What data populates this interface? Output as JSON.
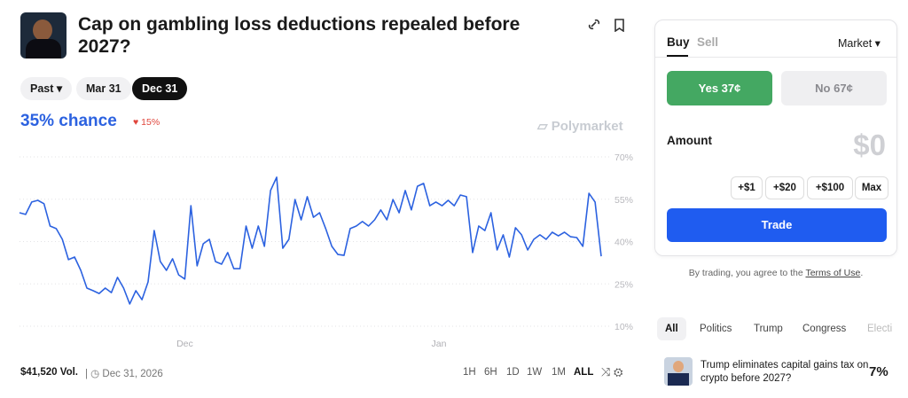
{
  "header": {
    "title": "Cap on gambling loss deductions repealed before 2027?"
  },
  "date_tabs": [
    "Past",
    "Mar 31",
    "Dec 31"
  ],
  "chance": "35% chance",
  "change": "15%",
  "brand": "Polymarket",
  "chart_data": {
    "type": "line",
    "color": "#2c62e0",
    "grid": true,
    "values": [
      50.2,
      49.6,
      54.0,
      54.6,
      53.4,
      45.5,
      44.6,
      40.8,
      33.6,
      34.5,
      29.8,
      23.5,
      22.6,
      21.6,
      23.5,
      21.9,
      27.3,
      23.5,
      17.9,
      22.6,
      19.4,
      25.7,
      43.9,
      32.9,
      29.8,
      33.9,
      28.2,
      26.7,
      52.7,
      31.4,
      39.2,
      40.8,
      32.9,
      32.0,
      36.1,
      30.4,
      30.4,
      45.5,
      37.6,
      45.5,
      38.3,
      58.1,
      62.8,
      37.6,
      40.8,
      54.9,
      47.7,
      55.9,
      48.6,
      50.2,
      44.6,
      38.3,
      35.4,
      35.1,
      44.6,
      45.5,
      47.1,
      45.5,
      47.7,
      51.2,
      47.7,
      54.9,
      50.2,
      58.1,
      51.2,
      59.6,
      60.6,
      52.7,
      54.0,
      52.7,
      54.6,
      52.7,
      56.5,
      55.9,
      36.1,
      45.5,
      43.9,
      50.2,
      37.0,
      42.4,
      34.5,
      44.9,
      42.4,
      37.0,
      40.8,
      42.4,
      40.8,
      43.3,
      42.0,
      43.3,
      41.7,
      41.4,
      38.3,
      57.1,
      54.0,
      34.8
    ],
    "xlim": [
      0,
      95
    ],
    "xticks": [
      {
        "value": 27,
        "label": "Dec"
      },
      {
        "value": 68.5,
        "label": "Jan"
      }
    ],
    "ylim": [
      10,
      70
    ],
    "yticks": [
      {
        "value": 70,
        "label": "70%"
      },
      {
        "value": 55,
        "label": "55%"
      },
      {
        "value": 40,
        "label": "40%"
      },
      {
        "value": 25,
        "label": "25%"
      },
      {
        "value": 10,
        "label": "10%"
      }
    ]
  },
  "footer": {
    "volume": "$41,520 Vol.",
    "end_date": "Dec 31, 2026",
    "ranges": [
      "1H",
      "6H",
      "1D",
      "1W",
      "1M",
      "ALL"
    ]
  },
  "trade": {
    "buy": "Buy",
    "sell": "Sell",
    "order_type": "Market",
    "yes": "Yes 37¢",
    "no": "No 67¢",
    "amount_label": "Amount",
    "amount": "$0",
    "increments": [
      "+$1",
      "+$20",
      "+$100",
      "Max"
    ],
    "button": "Trade",
    "terms_prefix": "By trading, you agree to the",
    "terms_link": "Terms of Use",
    "terms_suffix": "."
  },
  "categories": [
    "All",
    "Politics",
    "Trump",
    "Congress",
    "Electi"
  ],
  "related": {
    "title": "Trump eliminates capital gains tax on crypto before 2027?",
    "chance": "7%"
  }
}
